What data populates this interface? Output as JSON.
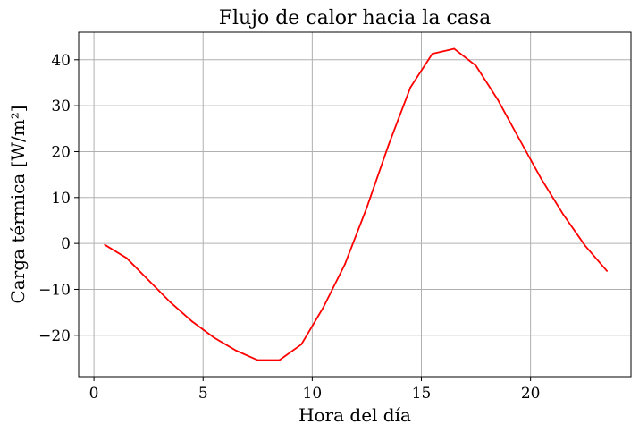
{
  "chart_data": {
    "type": "line",
    "title": "Flujo de calor hacia la casa",
    "xlabel": "Hora del día",
    "ylabel": "Carga térmica [W/m²]",
    "xlim": [
      -0.7,
      24.6
    ],
    "ylim": [
      -29,
      46
    ],
    "xticks": [
      0,
      5,
      10,
      15,
      20
    ],
    "xtick_labels": [
      "0",
      "5",
      "10",
      "15",
      "20"
    ],
    "yticks": [
      -20,
      -10,
      0,
      10,
      20,
      30,
      40
    ],
    "ytick_labels": [
      "−20",
      "−10",
      "0",
      "10",
      "20",
      "30",
      "40"
    ],
    "grid": true,
    "series": [
      {
        "color": "#ff0000",
        "x": [
          0.5,
          1.5,
          2.5,
          3.5,
          4.5,
          5.5,
          6.5,
          7.5,
          8.5,
          9.5,
          10.5,
          11.5,
          12.5,
          13.5,
          14.5,
          15.5,
          16.5,
          17.5,
          18.5,
          19.5,
          20.5,
          21.5,
          22.5,
          23.5
        ],
        "y": [
          -0.3,
          -3.2,
          -8.0,
          -12.8,
          -17.0,
          -20.5,
          -23.3,
          -25.4,
          -25.4,
          -22.0,
          -14.0,
          -4.5,
          7.8,
          21.5,
          34.0,
          41.3,
          42.4,
          38.7,
          31.3,
          22.6,
          14.0,
          6.3,
          -0.5,
          -6.0
        ]
      }
    ]
  }
}
